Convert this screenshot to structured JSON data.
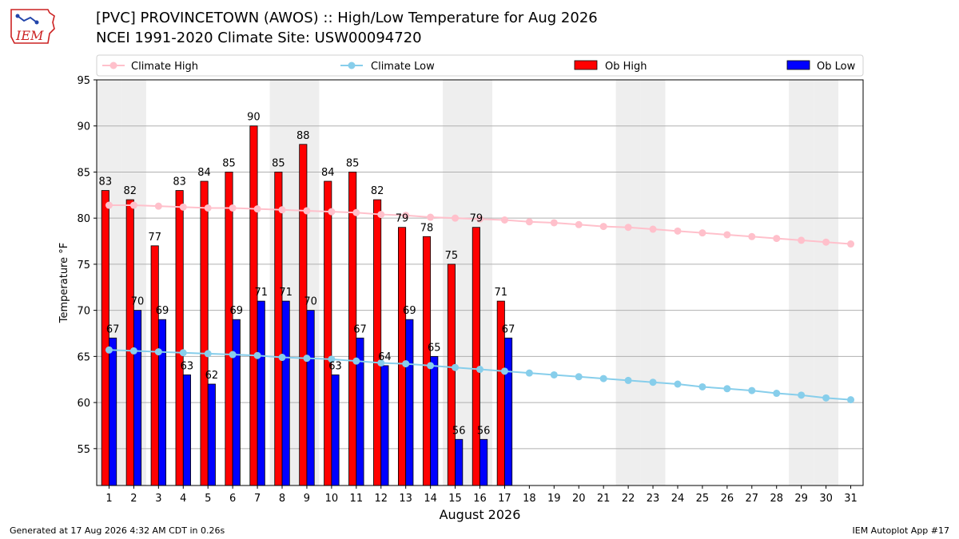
{
  "header": {
    "title_line1": "[PVC] PROVINCETOWN (AWOS) :: High/Low Temperature for Aug 2026",
    "title_line2": "NCEI 1991-2020 Climate Site: USW00094720",
    "logo_text": "IEM"
  },
  "footer": {
    "generated": "Generated at 17 Aug 2026 4:32 AM CDT in 0.26s",
    "app": "IEM Autoplot App #17"
  },
  "colors": {
    "ob_high": "#ff0000",
    "ob_low": "#0000ff",
    "climate_high": "#ffc0cb",
    "climate_low": "#87ceeb",
    "weekend_shade": "#eeeeee",
    "grid": "#b0b0b0"
  },
  "chart_data": {
    "type": "bar",
    "xlabel": "August 2026",
    "ylabel": "Temperature °F",
    "ylim": [
      51,
      95
    ],
    "yticks": [
      55,
      60,
      65,
      70,
      75,
      80,
      85,
      90,
      95
    ],
    "xlim": [
      0.5,
      31.5
    ],
    "grid": "horizontal",
    "legend_position": "top",
    "weekend_days": [
      1,
      2,
      8,
      9,
      15,
      16,
      22,
      23,
      29,
      30
    ],
    "days": [
      1,
      2,
      3,
      4,
      5,
      6,
      7,
      8,
      9,
      10,
      11,
      12,
      13,
      14,
      15,
      16,
      17,
      18,
      19,
      20,
      21,
      22,
      23,
      24,
      25,
      26,
      27,
      28,
      29,
      30,
      31
    ],
    "series": [
      {
        "name": "Climate High",
        "kind": "line",
        "values": [
          81.4,
          81.4,
          81.3,
          81.2,
          81.1,
          81.1,
          81.0,
          80.9,
          80.8,
          80.7,
          80.6,
          80.4,
          80.3,
          80.1,
          80.0,
          79.9,
          79.8,
          79.6,
          79.5,
          79.3,
          79.1,
          79.0,
          78.8,
          78.6,
          78.4,
          78.2,
          78.0,
          77.8,
          77.6,
          77.4,
          77.2
        ]
      },
      {
        "name": "Climate Low",
        "kind": "line",
        "values": [
          65.7,
          65.6,
          65.5,
          65.4,
          65.3,
          65.2,
          65.1,
          64.9,
          64.8,
          64.7,
          64.5,
          64.3,
          64.2,
          64.0,
          63.8,
          63.6,
          63.4,
          63.2,
          63.0,
          62.8,
          62.6,
          62.4,
          62.2,
          62.0,
          61.7,
          61.5,
          61.3,
          61.0,
          60.8,
          60.5,
          60.3
        ]
      },
      {
        "name": "Ob High",
        "kind": "bar",
        "values": [
          83,
          82,
          77,
          83,
          84,
          85,
          90,
          85,
          88,
          84,
          85,
          82,
          79,
          78,
          75,
          79,
          71
        ]
      },
      {
        "name": "Ob Low",
        "kind": "bar",
        "values": [
          67,
          70,
          69,
          63,
          62,
          69,
          71,
          71,
          70,
          63,
          67,
          64,
          69,
          65,
          56,
          56,
          67
        ]
      }
    ]
  }
}
